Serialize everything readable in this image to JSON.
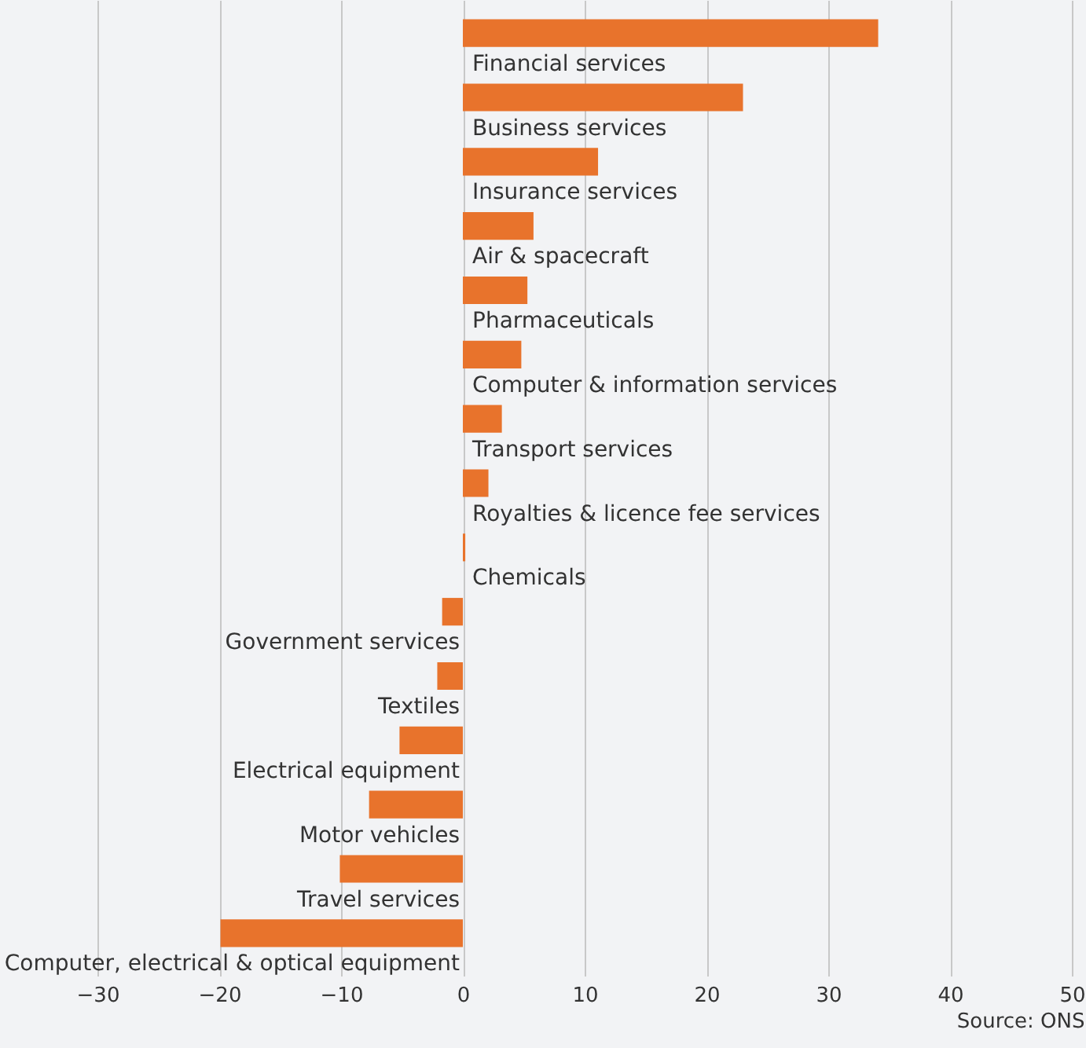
{
  "chart_data": {
    "type": "bar",
    "orientation": "horizontal",
    "categories": [
      "Financial services",
      "Business services",
      "Insurance services",
      "Air & spacecraft",
      "Pharmaceuticals",
      "Computer & information services",
      "Transport services",
      "Royalties & licence fee services",
      "Chemicals",
      "Government services",
      "Textiles",
      "Electrical equipment",
      "Motor vehicles",
      "Travel services",
      "Computer, electrical & optical equipment"
    ],
    "values": [
      34.1,
      23.0,
      11.1,
      5.8,
      5.3,
      4.8,
      3.2,
      2.1,
      0.2,
      -1.7,
      -2.1,
      -5.2,
      -7.7,
      -10.1,
      -19.9
    ],
    "color": "#e8732c",
    "xlim": [
      -30,
      50
    ],
    "xticks": [
      -30,
      -20,
      -10,
      0,
      10,
      20,
      30,
      40,
      50
    ],
    "grid": "x",
    "annotations": [
      "Source: ONS"
    ]
  }
}
